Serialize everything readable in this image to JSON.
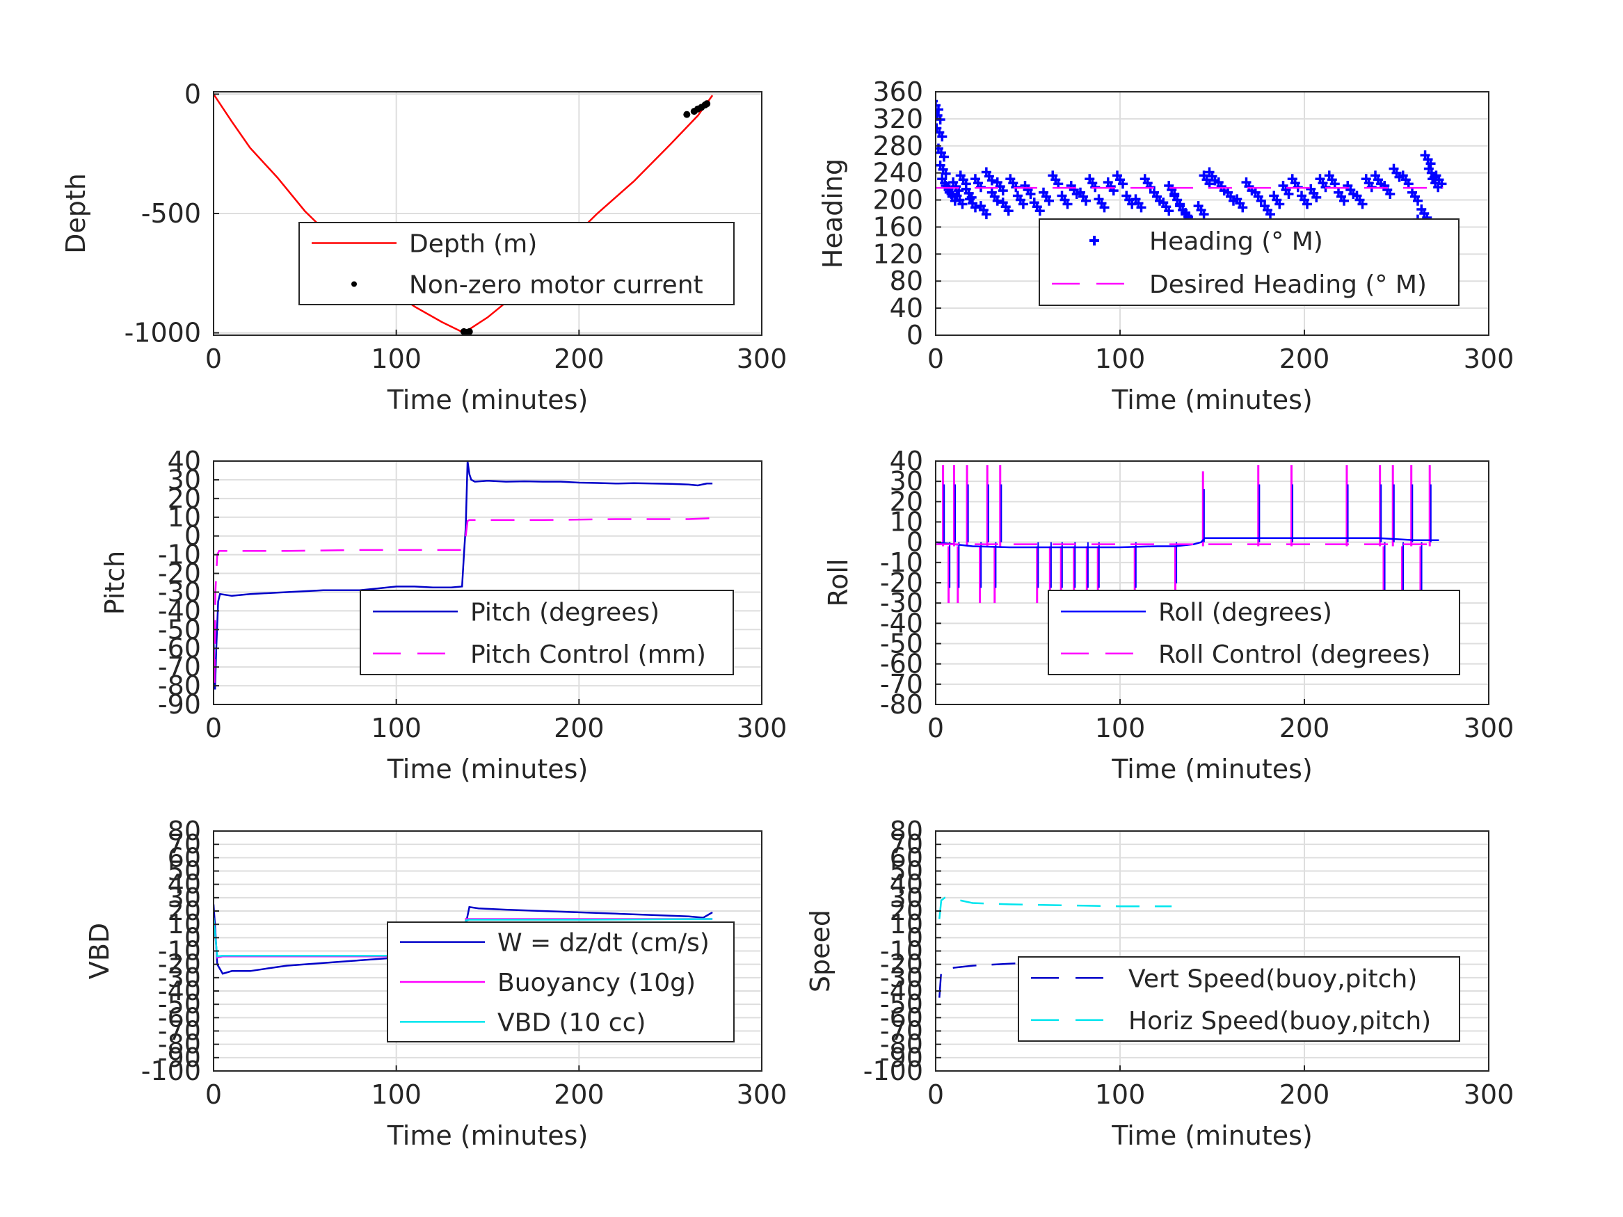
{
  "colors": {
    "depth": "#ff0000",
    "motor": "#000000",
    "blue": "#0000ff",
    "navy": "#0000c8",
    "magenta": "#ff00ff",
    "cyan": "#00e5ee",
    "grid": "#dedede",
    "axis": "#262626"
  },
  "chart_data": [
    {
      "id": "depth",
      "type": "line",
      "xlabel": "Time (minutes)",
      "ylabel": "Depth",
      "xlim": [
        0,
        300
      ],
      "ylim": [
        -1010,
        10
      ],
      "xticks": [
        0,
        100,
        200,
        300
      ],
      "yticks": [
        0,
        -500,
        -1000
      ],
      "grid": true,
      "legend_position": "center-right",
      "series": [
        {
          "name": "Depth (m)",
          "style": "solid",
          "color": "#ff0000",
          "x": [
            0,
            10,
            20,
            35,
            50,
            70,
            90,
            110,
            125,
            137,
            150,
            170,
            190,
            210,
            230,
            250,
            265,
            273
          ],
          "y": [
            0,
            -115,
            -225,
            -350,
            -490,
            -640,
            -780,
            -890,
            -955,
            -1000,
            -935,
            -810,
            -650,
            -500,
            -365,
            -210,
            -90,
            -5
          ]
        },
        {
          "name": "Non-zero motor current",
          "style": "dots",
          "color": "#000000",
          "x": [
            137,
            138.5,
            140,
            259,
            263,
            265,
            267,
            269,
            270
          ],
          "y": [
            -995,
            -998,
            -995,
            -85,
            -72,
            -62,
            -55,
            -45,
            -40
          ]
        }
      ]
    },
    {
      "id": "heading",
      "type": "scatter",
      "xlabel": "Time (minutes)",
      "ylabel": "Heading",
      "xlim": [
        0,
        300
      ],
      "ylim": [
        0,
        360
      ],
      "xticks": [
        0,
        100,
        200,
        300
      ],
      "yticks": [
        0,
        40,
        80,
        120,
        160,
        200,
        240,
        280,
        320,
        360
      ],
      "grid": true,
      "legend_position": "center-right",
      "series": [
        {
          "name": "Heading (° M)",
          "style": "plus",
          "color": "#0000ff",
          "x": [
            0,
            1,
            2,
            3,
            4,
            5,
            7,
            9,
            11,
            13,
            15,
            18,
            20,
            23,
            26,
            29,
            32,
            35,
            38,
            42,
            46,
            50,
            55,
            60,
            65,
            70,
            75,
            80,
            85,
            90,
            95,
            100,
            105,
            110,
            115,
            120,
            125,
            128,
            131,
            134,
            137,
            140,
            142,
            144,
            147,
            150,
            155,
            160,
            165,
            170,
            175,
            180,
            185,
            190,
            195,
            200,
            205,
            210,
            215,
            220,
            225,
            230,
            235,
            240,
            245,
            250,
            255,
            260,
            263,
            265,
            267,
            269,
            271,
            273
          ],
          "y": [
            340,
            325,
            300,
            270,
            245,
            225,
            215,
            205,
            220,
            200,
            230,
            210,
            195,
            225,
            185,
            235,
            205,
            220,
            190,
            225,
            200,
            215,
            190,
            205,
            230,
            200,
            215,
            205,
            225,
            195,
            220,
            230,
            200,
            195,
            225,
            205,
            190,
            215,
            200,
            185,
            175,
            165,
            155,
            185,
            230,
            235,
            220,
            205,
            195,
            220,
            205,
            185,
            200,
            215,
            225,
            200,
            210,
            225,
            230,
            205,
            215,
            200,
            225,
            230,
            215,
            240,
            230,
            205,
            165,
            180,
            260,
            240,
            225,
            230
          ]
        },
        {
          "name": "Desired Heading (° M)",
          "style": "dashed",
          "color": "#ff00ff",
          "x": [
            0,
            275
          ],
          "y": [
            218,
            218
          ]
        }
      ]
    },
    {
      "id": "pitch",
      "type": "line",
      "xlabel": "Time (minutes)",
      "ylabel": "Pitch",
      "xlim": [
        0,
        300
      ],
      "ylim": [
        -90,
        40
      ],
      "xticks": [
        0,
        100,
        200,
        300
      ],
      "yticks": [
        40,
        30,
        20,
        10,
        0,
        -10,
        -20,
        -30,
        -40,
        -50,
        -60,
        -70,
        -80,
        -90
      ],
      "grid": true,
      "legend_position": "center-right",
      "series": [
        {
          "name": "Pitch (degrees)",
          "style": "solid",
          "color": "#0000c8",
          "x": [
            0,
            0.8,
            1.5,
            2.5,
            3.5,
            10,
            20,
            40,
            60,
            80,
            90,
            100,
            110,
            120,
            130,
            136,
            137,
            138,
            139,
            140,
            141,
            143,
            150,
            160,
            170,
            180,
            190,
            200,
            210,
            220,
            230,
            240,
            250,
            260,
            265,
            270,
            273
          ],
          "y": [
            -55,
            -82,
            -60,
            -35,
            -31,
            -32,
            -31,
            -30,
            -29,
            -29,
            -28,
            -27,
            -27,
            -27.5,
            -27.5,
            -27,
            -10,
            5,
            40,
            33,
            30,
            29,
            29.5,
            29,
            29.2,
            29,
            29,
            28.5,
            28.3,
            28,
            28.2,
            28,
            27.8,
            27.5,
            27,
            28,
            28
          ]
        },
        {
          "name": "Pitch Control (mm)",
          "style": "dashed",
          "color": "#ff00ff",
          "x": [
            0,
            0.5,
            1,
            2,
            3,
            40,
            80,
            120,
            136,
            137,
            138,
            139,
            140,
            180,
            220,
            260,
            273
          ],
          "y": [
            -40,
            -80,
            -30,
            -10,
            -8,
            -8,
            -7.5,
            -7.5,
            -7.5,
            -5,
            0,
            8,
            8.5,
            8.5,
            9,
            9,
            9.5
          ]
        }
      ]
    },
    {
      "id": "roll",
      "type": "line",
      "xlabel": "Time (minutes)",
      "ylabel": "Roll",
      "xlim": [
        0,
        300
      ],
      "ylim": [
        -80,
        40
      ],
      "xticks": [
        0,
        100,
        200,
        300
      ],
      "yticks": [
        40,
        30,
        20,
        10,
        0,
        -10,
        -20,
        -30,
        -40,
        -50,
        -60,
        -70,
        -80
      ],
      "grid": true,
      "legend_position": "center-right",
      "spikes_x": [
        4,
        7,
        10,
        12,
        17,
        24,
        28,
        32,
        35,
        55,
        62,
        68,
        75,
        82,
        88,
        108,
        130,
        145,
        175,
        193,
        223,
        241,
        243,
        248,
        253,
        258,
        263,
        268
      ],
      "spikes_y": [
        38,
        -30,
        38,
        -30,
        38,
        -30,
        38,
        -30,
        38,
        -30,
        -30,
        -30,
        -30,
        -30,
        -30,
        -30,
        -27,
        35,
        38,
        38,
        38,
        38,
        -35,
        38,
        -35,
        38,
        -35,
        38
      ],
      "series": [
        {
          "name": "Roll (degrees)",
          "style": "solid",
          "color": "#0000ff",
          "x": [
            0,
            10,
            20,
            40,
            60,
            80,
            100,
            120,
            130,
            140,
            144,
            146,
            160,
            180,
            200,
            220,
            240,
            260,
            270,
            273
          ],
          "y": [
            0,
            -1,
            -2,
            -2.5,
            -2.5,
            -2.5,
            -2.5,
            -2,
            -2,
            -1,
            0,
            2,
            2,
            2,
            2,
            2,
            2,
            1,
            1,
            1
          ]
        },
        {
          "name": "Roll Control (degrees)",
          "style": "dashed",
          "color": "#ff00ff",
          "x": [
            0,
            50,
            100,
            150,
            200,
            250,
            273
          ],
          "y": [
            -1,
            -1,
            -1,
            -1,
            -1,
            -1,
            -1
          ]
        }
      ]
    },
    {
      "id": "vbd",
      "type": "line",
      "xlabel": "Time (minutes)",
      "ylabel": "VBD",
      "xlim": [
        0,
        300
      ],
      "ylim": [
        -100,
        80
      ],
      "xticks": [
        0,
        100,
        200,
        300
      ],
      "yticks": [
        80,
        70,
        60,
        50,
        40,
        30,
        20,
        10,
        0,
        -10,
        -20,
        -30,
        -40,
        -50,
        -60,
        -70,
        -80,
        -90,
        -100
      ],
      "grid": true,
      "legend_position": "center-right",
      "series": [
        {
          "name": "W = dz/dt (cm/s)",
          "style": "solid",
          "color": "#0000c8",
          "x": [
            0,
            1,
            2,
            5,
            10,
            20,
            30,
            40,
            60,
            80,
            100,
            120,
            136,
            137,
            138,
            140,
            145,
            160,
            180,
            200,
            220,
            240,
            260,
            268,
            273
          ],
          "y": [
            25,
            5,
            -20,
            -27,
            -25,
            -25,
            -23,
            -21,
            -19,
            -17,
            -15,
            -14,
            -13,
            -5,
            10,
            23,
            22,
            21,
            20,
            19,
            18,
            17,
            16,
            15,
            19
          ]
        },
        {
          "name": "Buoyancy (10g)",
          "style": "solid",
          "color": "#ff00ff",
          "x": [
            0,
            2,
            5,
            20,
            60,
            100,
            136,
            138,
            140,
            200,
            273
          ],
          "y": [
            15,
            -15,
            -14,
            -14,
            -14,
            -14,
            -14,
            14,
            14,
            14,
            14
          ]
        },
        {
          "name": "VBD (10 cc)",
          "style": "solid",
          "color": "#00e5ee",
          "x": [
            0,
            2,
            5,
            20,
            60,
            100,
            136,
            138,
            140,
            200,
            273
          ],
          "y": [
            15,
            -14,
            -13.5,
            -13.5,
            -13.5,
            -13.5,
            -13.5,
            13,
            13.5,
            13.5,
            14
          ]
        }
      ]
    },
    {
      "id": "speed",
      "type": "line",
      "xlabel": "Time (minutes)",
      "ylabel": "Speed",
      "xlim": [
        0,
        300
      ],
      "ylim": [
        -100,
        80
      ],
      "xticks": [
        0,
        100,
        200,
        300
      ],
      "yticks": [
        80,
        70,
        60,
        50,
        40,
        30,
        20,
        10,
        0,
        -10,
        -20,
        -30,
        -40,
        -50,
        -60,
        -70,
        -80,
        -90,
        -100
      ],
      "grid": true,
      "legend_position": "center-right",
      "series": [
        {
          "name": "Vert Speed(buoy,pitch)",
          "style": "dashed",
          "color": "#0000c8",
          "x": [
            2,
            3,
            4,
            10,
            20,
            40,
            60,
            80,
            100,
            120,
            138
          ],
          "y": [
            -45,
            -25,
            -24,
            -22.5,
            -21,
            -19.5,
            -18.5,
            -18,
            -17.5,
            -17.5,
            -17.5
          ]
        },
        {
          "name": "Horiz Speed(buoy,pitch)",
          "style": "dashed",
          "color": "#00e5ee",
          "x": [
            2,
            3,
            5,
            10,
            20,
            40,
            60,
            80,
            100,
            120,
            128
          ],
          "y": [
            14,
            28,
            30,
            29,
            26,
            25,
            24.5,
            24,
            23.5,
            23.5,
            23.5
          ]
        }
      ]
    }
  ]
}
